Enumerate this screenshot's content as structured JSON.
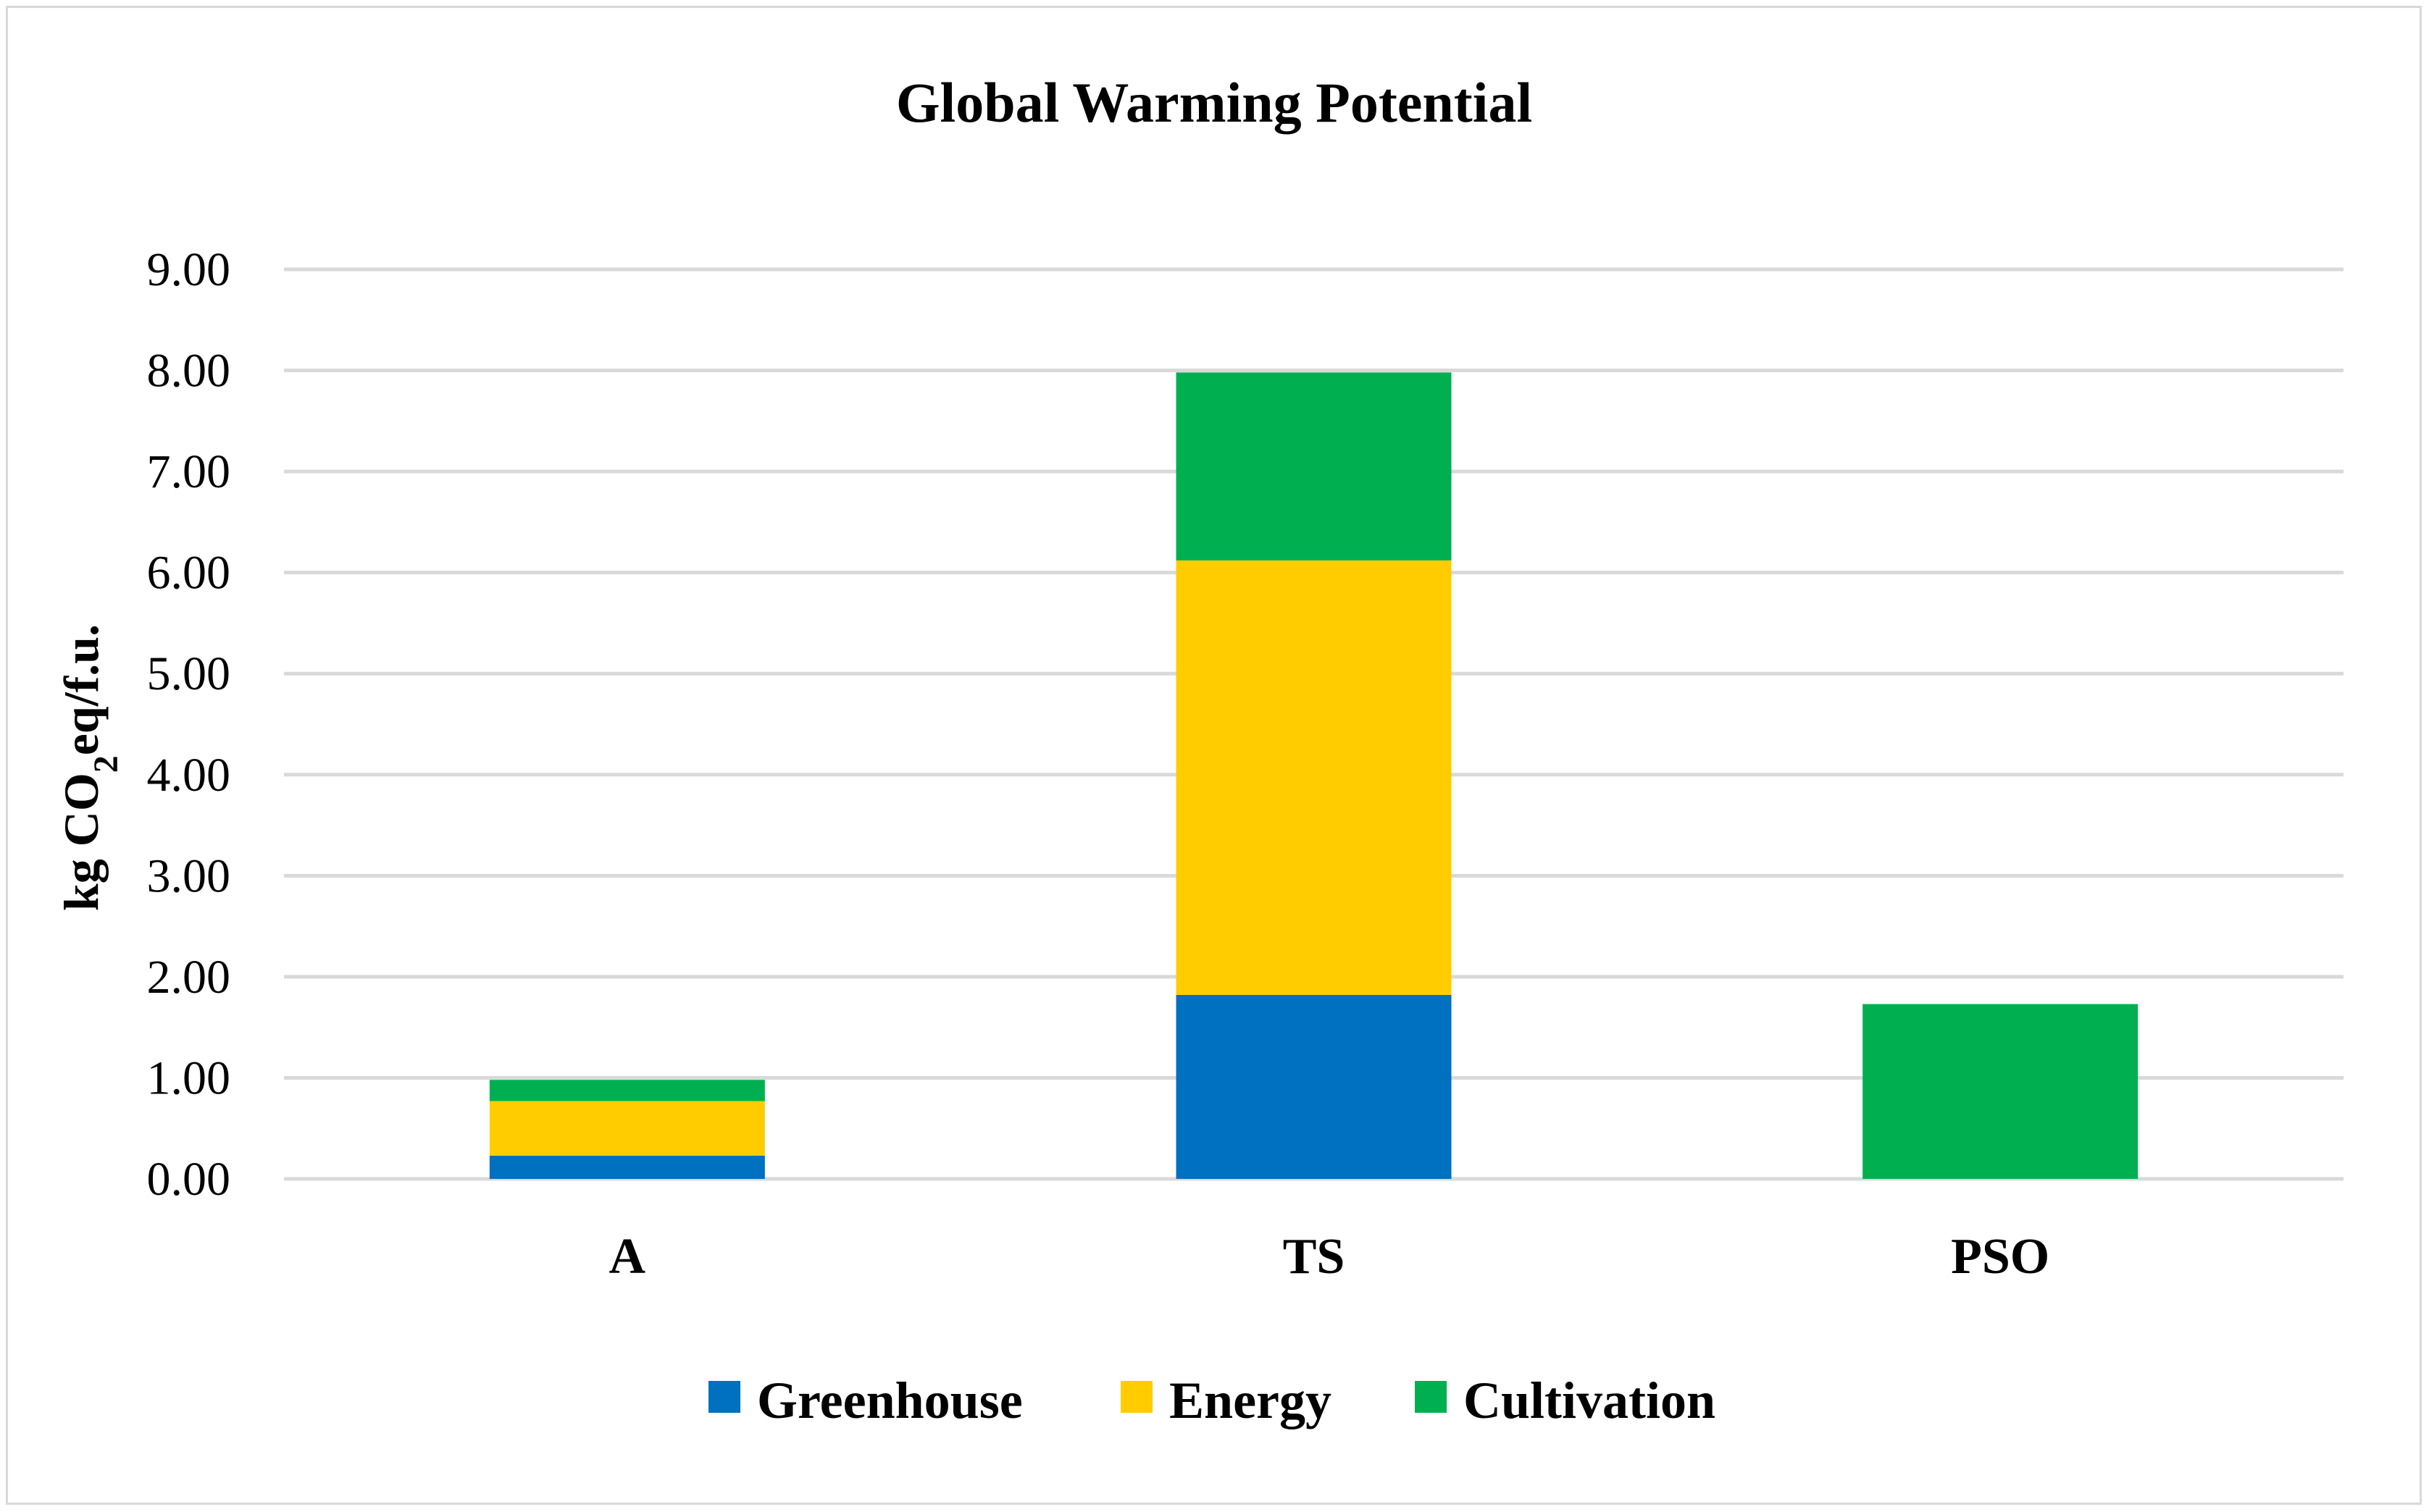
{
  "chart_data": {
    "type": "bar",
    "stacked": true,
    "title": "Global Warming Potential",
    "xlabel": "",
    "ylabel": {
      "prefix": "kg CO",
      "subscript": "2",
      "suffix": "eq/f.u."
    },
    "categories": [
      "A",
      "TS",
      "PSO"
    ],
    "ylim": [
      0,
      9
    ],
    "yticks": [
      "0.00",
      "1.00",
      "2.00",
      "3.00",
      "4.00",
      "5.00",
      "6.00",
      "7.00",
      "8.00",
      "9.00"
    ],
    "grid": true,
    "legend_position": "bottom",
    "series": [
      {
        "name": "Greenhouse",
        "color": "#0070c0",
        "values": [
          0.23,
          1.82,
          0
        ]
      },
      {
        "name": "Energy",
        "color": "#ffcc00",
        "values": [
          0.54,
          4.3,
          0
        ]
      },
      {
        "name": "Cultivation",
        "color": "#00b050",
        "values": [
          0.21,
          1.86,
          1.73
        ]
      }
    ]
  }
}
